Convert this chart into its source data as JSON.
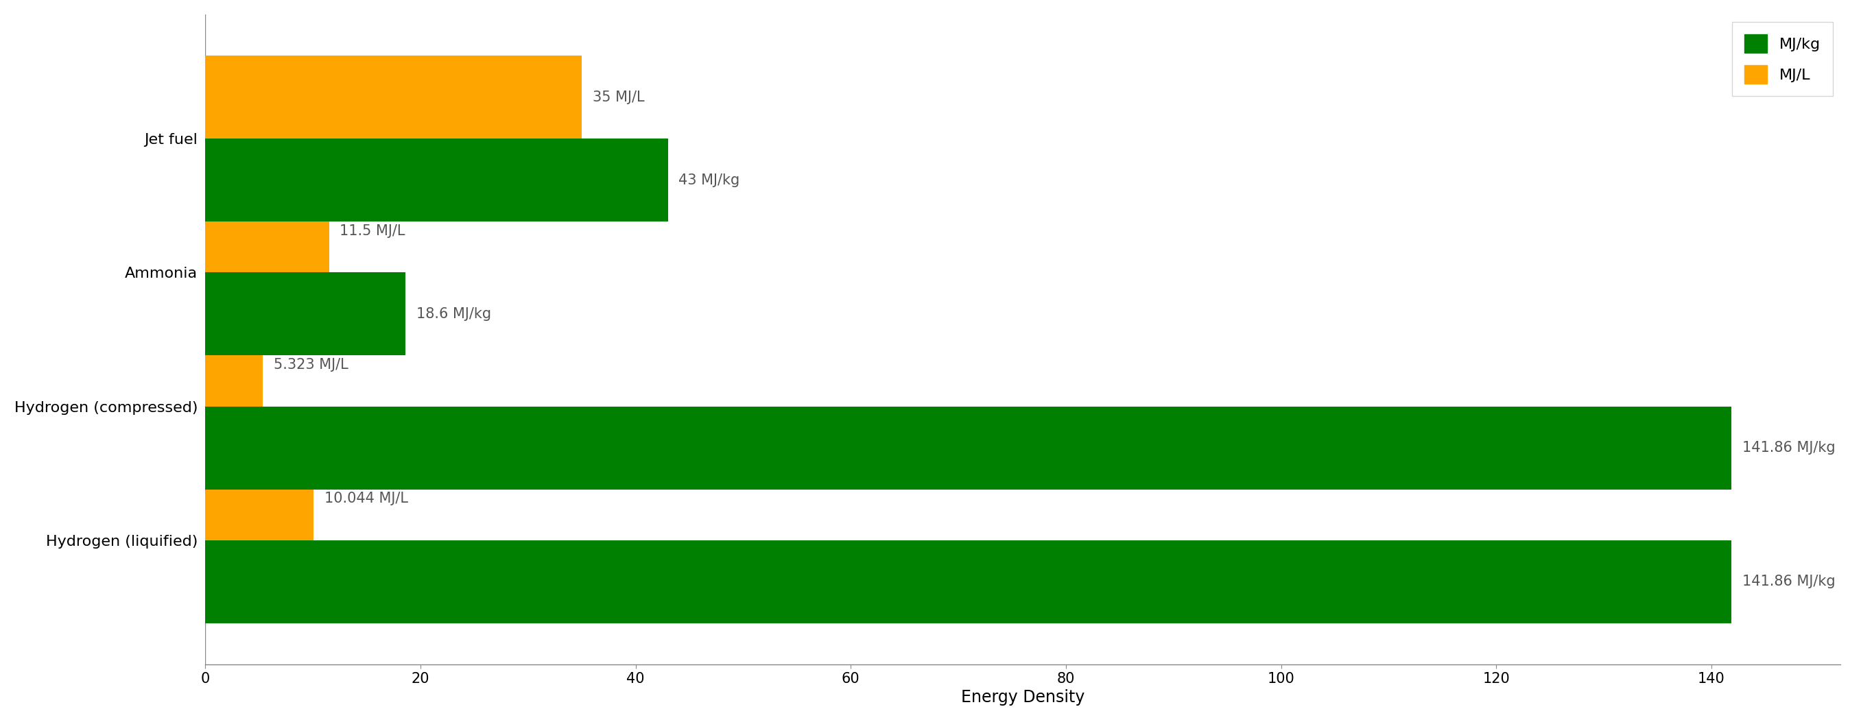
{
  "categories": [
    "Hydrogen (liquified)",
    "Hydrogen (compressed)",
    "Ammonia",
    "Jet fuel"
  ],
  "mj_per_kg": [
    141.86,
    141.86,
    18.6,
    43
  ],
  "mj_per_L": [
    10.044,
    5.323,
    11.5,
    35
  ],
  "mj_per_kg_labels": [
    "141.86 MJ/kg",
    "141.86 MJ/kg",
    "18.6 MJ/kg",
    "43 MJ/kg"
  ],
  "mj_per_L_labels": [
    "10.044 MJ/L",
    "5.323 MJ/L",
    "11.5 MJ/L",
    "35 MJ/L"
  ],
  "color_kg": "#008000",
  "color_L": "#FFA500",
  "xlabel": "Energy Density",
  "bar_height": 0.62,
  "xlim": [
    0,
    152
  ],
  "xticks": [
    0,
    20,
    40,
    60,
    80,
    100,
    120,
    140
  ],
  "legend_labels": [
    "MJ/kg",
    "MJ/L"
  ],
  "label_fontsize": 16,
  "tick_fontsize": 15,
  "xlabel_fontsize": 17,
  "ytick_fontsize": 16,
  "annotation_fontsize": 15,
  "annotation_color": "#555555"
}
